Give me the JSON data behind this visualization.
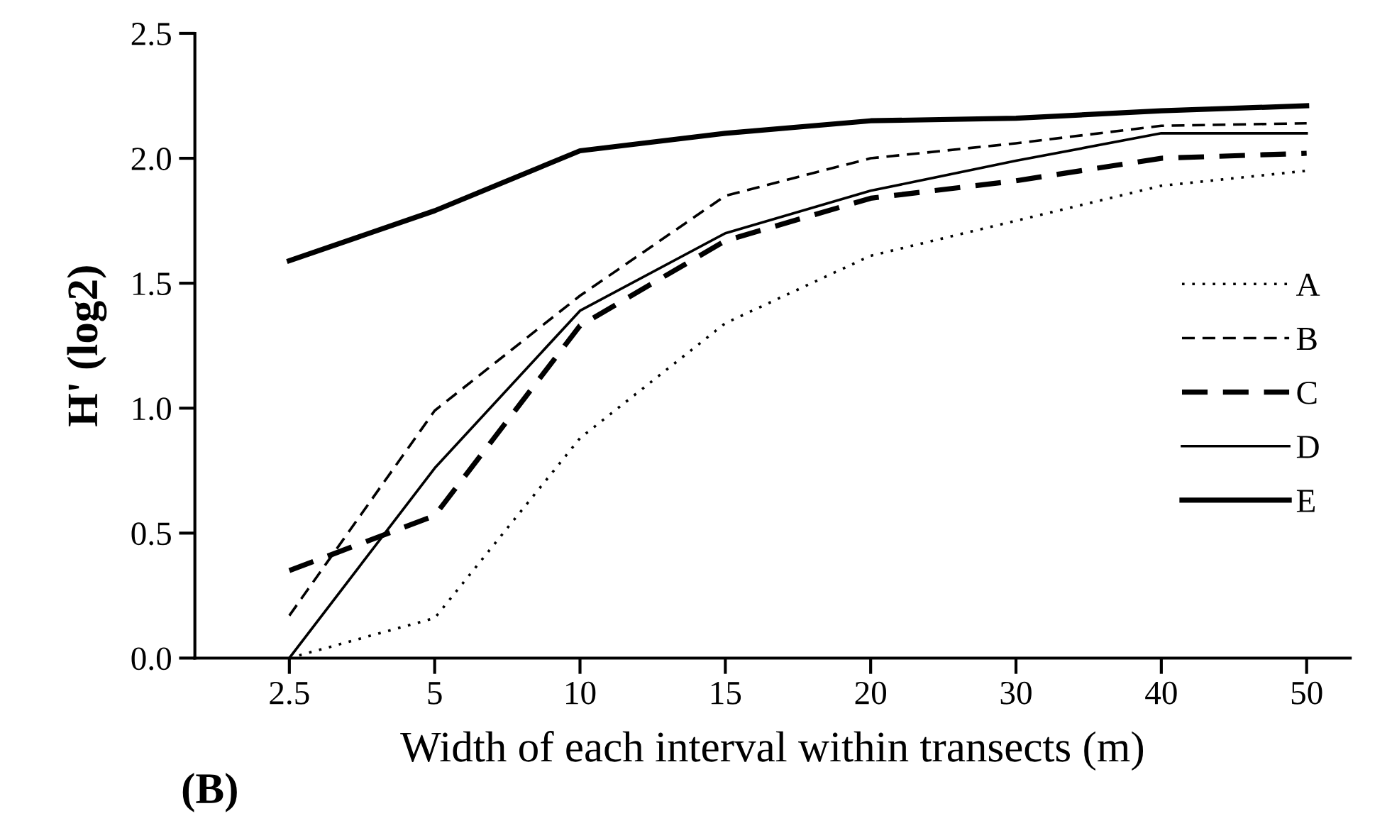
{
  "chart_data": {
    "type": "line",
    "xlabel": "Width of each interval within transects (m)",
    "ylabel": "H' (log2)",
    "categories": [
      "2.5",
      "5",
      "10",
      "15",
      "20",
      "30",
      "40",
      "50"
    ],
    "series": [
      {
        "name": "A",
        "color": "#000000",
        "line_style": "dotted",
        "values": [
          0.0,
          0.16,
          0.88,
          1.34,
          1.61,
          1.75,
          1.89,
          1.95
        ]
      },
      {
        "name": "B",
        "color": "#000000",
        "line_style": "dashed",
        "values": [
          0.17,
          0.99,
          1.45,
          1.85,
          2.0,
          2.06,
          2.13,
          2.14
        ]
      },
      {
        "name": "C",
        "color": "#000000",
        "line_style": "dashed",
        "values": [
          0.35,
          0.57,
          1.33,
          1.67,
          1.84,
          1.91,
          2.0,
          2.02
        ]
      },
      {
        "name": "D",
        "color": "#000000",
        "line_style": "solid",
        "values": [
          0.0,
          0.76,
          1.39,
          1.7,
          1.87,
          1.99,
          2.1,
          2.1
        ]
      },
      {
        "name": "E",
        "color": "#000000",
        "line_style": "solid",
        "values": [
          1.59,
          1.79,
          2.03,
          2.1,
          2.15,
          2.16,
          2.19,
          2.21
        ]
      }
    ],
    "ylim": [
      0,
      2.5
    ],
    "yticks": [
      {
        "value": 0,
        "label": "0.0"
      },
      {
        "value": 0.5,
        "label": "0.5"
      },
      {
        "value": 1.0,
        "label": "1.0"
      },
      {
        "value": 1.5,
        "label": "1.5"
      },
      {
        "value": 2.0,
        "label": "2.0"
      },
      {
        "value": 2.5,
        "label": "2.5"
      }
    ],
    "grid": false,
    "legend": "right",
    "marker": "none",
    "annotations": [
      "(B)"
    ]
  }
}
